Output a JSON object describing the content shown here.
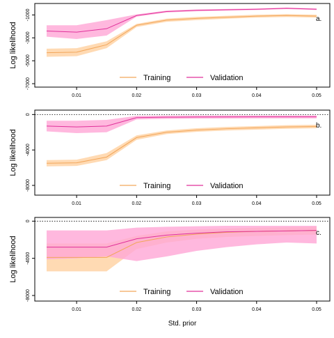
{
  "figure": {
    "xlabel": "Std. prior",
    "colors": {
      "training_line": "#f2a65a",
      "training_band": "#ffd3a6",
      "validation_line": "#e0309a",
      "validation_band": "#ffa6d6",
      "axis": "#000000",
      "reference": "#000000"
    }
  },
  "chart_data": [
    {
      "type": "line",
      "panel_label": "a.",
      "ylabel": "Log likelihood",
      "x": [
        0.005,
        0.01,
        0.015,
        0.02,
        0.025,
        0.03,
        0.035,
        0.04,
        0.045,
        0.05
      ],
      "xticks": [
        "0.01",
        "0.02",
        "0.03",
        "0.04",
        "0.05"
      ],
      "xtick_values": [
        0.01,
        0.02,
        0.03,
        0.04,
        0.05
      ],
      "yticks": [
        "-1000",
        "-3000",
        "-5000",
        "-7000"
      ],
      "ytick_values": [
        -1000,
        -3000,
        -5000,
        -7000
      ],
      "ylim": [
        -7300,
        0
      ],
      "reference_line": 0,
      "legend": {
        "position": "bottom-center",
        "entries": [
          "Training",
          "Validation"
        ]
      },
      "series": [
        {
          "name": "Training",
          "values": [
            -4300,
            -4250,
            -3600,
            -1900,
            -1450,
            -1300,
            -1200,
            -1100,
            -1050,
            -1100
          ],
          "lower": [
            -4650,
            -4600,
            -3900,
            -2050,
            -1600,
            -1450,
            -1330,
            -1230,
            -1180,
            -1230
          ],
          "upper": [
            -3950,
            -3900,
            -3300,
            -1780,
            -1320,
            -1170,
            -1070,
            -980,
            -930,
            -980
          ]
        },
        {
          "name": "Validation",
          "values": [
            -2400,
            -2500,
            -2200,
            -1050,
            -700,
            -600,
            -550,
            -500,
            -420,
            -500
          ],
          "lower": [
            -2900,
            -3100,
            -2800,
            -1150,
            -780,
            -680,
            -620,
            -570,
            -490,
            -570
          ],
          "upper": [
            -1900,
            -1900,
            -1450,
            -950,
            -620,
            -520,
            -480,
            -430,
            -360,
            -430
          ]
        }
      ]
    },
    {
      "type": "line",
      "panel_label": "b.",
      "ylabel": "Log likelihood",
      "x": [
        0.005,
        0.01,
        0.015,
        0.02,
        0.025,
        0.03,
        0.035,
        0.04,
        0.045,
        0.05
      ],
      "xticks": [
        "0.01",
        "0.02",
        "0.03",
        "0.04",
        "0.05"
      ],
      "xtick_values": [
        0.01,
        0.02,
        0.03,
        0.04,
        0.05
      ],
      "yticks": [
        "0",
        "-4000",
        "-8000"
      ],
      "ytick_values": [
        0,
        -4000,
        -8000
      ],
      "ylim": [
        -9100,
        500
      ],
      "reference_line": 0,
      "legend": {
        "position": "bottom-center",
        "entries": [
          "Training",
          "Validation"
        ]
      },
      "series": [
        {
          "name": "Training",
          "values": [
            -5500,
            -5450,
            -4800,
            -2600,
            -2000,
            -1750,
            -1600,
            -1500,
            -1400,
            -1350
          ],
          "lower": [
            -5850,
            -5800,
            -5150,
            -2850,
            -2200,
            -1950,
            -1800,
            -1700,
            -1600,
            -1550
          ],
          "upper": [
            -5150,
            -5100,
            -4350,
            -2350,
            -1800,
            -1550,
            -1400,
            -1300,
            -1200,
            -1150
          ]
        },
        {
          "name": "Validation",
          "values": [
            -1300,
            -1400,
            -1300,
            -350,
            -300,
            -280,
            -270,
            -260,
            -260,
            -260
          ],
          "lower": [
            -1900,
            -2100,
            -2000,
            -550,
            -480,
            -450,
            -440,
            -430,
            -430,
            -430
          ],
          "upper": [
            -700,
            -700,
            -600,
            -150,
            -120,
            -110,
            -100,
            -100,
            -100,
            -100
          ]
        }
      ]
    },
    {
      "type": "line",
      "panel_label": "c.",
      "ylabel": "Log likelihood",
      "x": [
        0.005,
        0.01,
        0.015,
        0.02,
        0.025,
        0.03,
        0.035,
        0.04,
        0.045,
        0.05
      ],
      "xticks": [
        "0.01",
        "0.02",
        "0.03",
        "0.04",
        "0.05"
      ],
      "xtick_values": [
        0.01,
        0.02,
        0.03,
        0.04,
        0.05
      ],
      "yticks": [
        "0",
        "-4000",
        "-8000"
      ],
      "ytick_values": [
        0,
        -4000,
        -8000
      ],
      "ylim": [
        -8600,
        400
      ],
      "reference_line": 0,
      "legend": {
        "position": "bottom-center",
        "entries": [
          "Training",
          "Validation"
        ]
      },
      "series": [
        {
          "name": "Training",
          "values": [
            -3900,
            -3900,
            -3900,
            -2300,
            -1700,
            -1400,
            -1200,
            -1100,
            -1050,
            -1000
          ],
          "lower": [
            -5400,
            -5400,
            -5400,
            -3000,
            -2300,
            -1900,
            -1700,
            -1600,
            -1500,
            -1450
          ],
          "upper": [
            -2400,
            -2400,
            -2400,
            -1600,
            -1100,
            -900,
            -800,
            -700,
            -650,
            -600
          ]
        },
        {
          "name": "Validation",
          "values": [
            -2800,
            -2800,
            -2800,
            -1900,
            -1500,
            -1300,
            -1150,
            -1100,
            -1050,
            -1000
          ],
          "lower": [
            -4100,
            -4000,
            -3800,
            -4300,
            -3800,
            -3200,
            -2800,
            -2500,
            -2300,
            -2400
          ],
          "upper": [
            -1000,
            -1000,
            -1000,
            -700,
            -600,
            -550,
            -500,
            -500,
            -500,
            -500
          ]
        }
      ]
    }
  ]
}
